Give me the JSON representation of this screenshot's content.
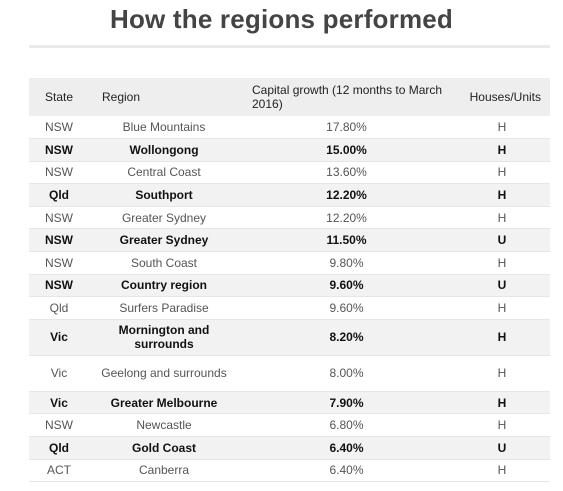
{
  "title": "How the regions performed",
  "chart_data": {
    "type": "table",
    "title": "How the regions performed",
    "columns": [
      "State",
      "Region",
      "Capital growth (12 months to March 2016)",
      "Houses/Units"
    ],
    "rows": [
      {
        "state": "NSW",
        "region": "Blue Mountains",
        "growth": "17.80%",
        "type": "H"
      },
      {
        "state": "NSW",
        "region": "Wollongong",
        "growth": "15.00%",
        "type": "H"
      },
      {
        "state": "NSW",
        "region": "Central Coast",
        "growth": "13.60%",
        "type": "H"
      },
      {
        "state": "Qld",
        "region": "Southport",
        "growth": "12.20%",
        "type": "H"
      },
      {
        "state": "NSW",
        "region": "Greater Sydney",
        "growth": "12.20%",
        "type": "H"
      },
      {
        "state": "NSW",
        "region": "Greater Sydney",
        "growth": "11.50%",
        "type": "U"
      },
      {
        "state": "NSW",
        "region": "South Coast",
        "growth": "9.80%",
        "type": "H"
      },
      {
        "state": "NSW",
        "region": "Country region",
        "growth": "9.60%",
        "type": "U"
      },
      {
        "state": "Qld",
        "region": "Surfers Paradise",
        "growth": "9.60%",
        "type": "H"
      },
      {
        "state": "Vic",
        "region": "Mornington and surrounds",
        "growth": "8.20%",
        "type": "H"
      },
      {
        "state": "Vic",
        "region": "Geelong and surrounds",
        "growth": "8.00%",
        "type": "H"
      },
      {
        "state": "Vic",
        "region": "Greater Melbourne",
        "growth": "7.90%",
        "type": "H"
      },
      {
        "state": "NSW",
        "region": "Newcastle",
        "growth": "6.80%",
        "type": "H"
      },
      {
        "state": "Qld",
        "region": "Gold Coast",
        "growth": "6.40%",
        "type": "U"
      },
      {
        "state": "ACT",
        "region": "Canberra",
        "growth": "6.40%",
        "type": "H"
      }
    ]
  }
}
